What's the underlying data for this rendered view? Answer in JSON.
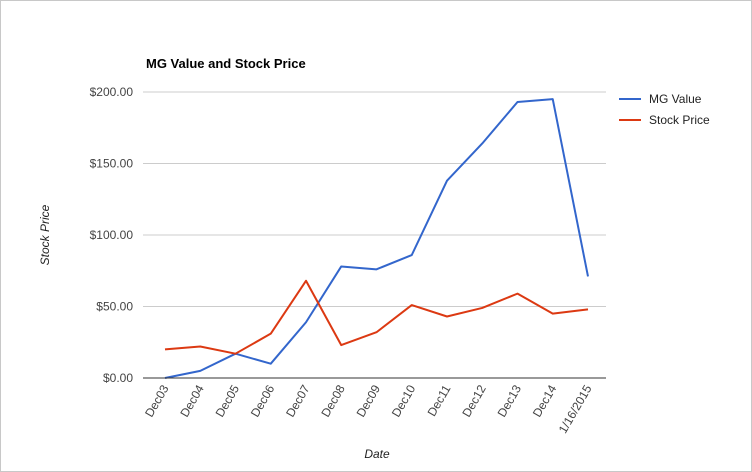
{
  "chart_data": {
    "type": "line",
    "title": "MG Value and Stock Price",
    "xlabel": "Date",
    "ylabel": "Stock Price",
    "categories": [
      "Dec03",
      "Dec04",
      "Dec05",
      "Dec06",
      "Dec07",
      "Dec08",
      "Dec09",
      "Dec10",
      "Dec11",
      "Dec12",
      "Dec13",
      "Dec14",
      "1/16/2015"
    ],
    "yticks": [
      "$0.00",
      "$50.00",
      "$100.00",
      "$150.00",
      "$200.00"
    ],
    "ytick_values": [
      0,
      50,
      100,
      150,
      200
    ],
    "ylim": [
      0,
      200
    ],
    "grid": true,
    "legend_position": "right",
    "series": [
      {
        "name": "MG Value",
        "color": "#3366cc",
        "values": [
          0,
          5,
          17,
          10,
          39,
          78,
          76,
          86,
          138,
          164,
          193,
          195,
          71
        ]
      },
      {
        "name": "Stock Price",
        "color": "#dc3912",
        "values": [
          20,
          22,
          17,
          31,
          68,
          23,
          32,
          51,
          43,
          49,
          59,
          45,
          48
        ]
      }
    ]
  }
}
